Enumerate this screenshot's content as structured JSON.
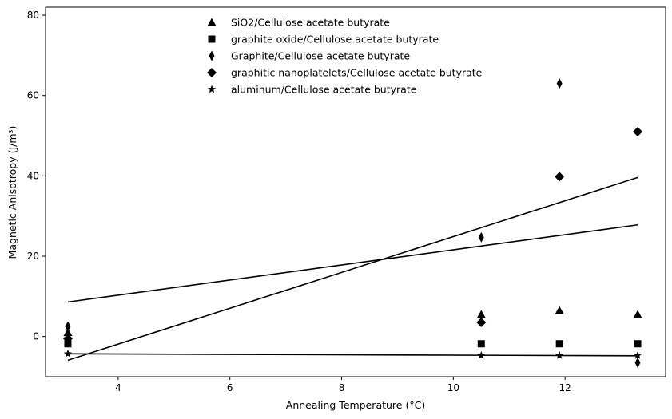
{
  "chart_data": {
    "type": "scatter",
    "title": "",
    "xlabel": "Annealing Temperature (°C)",
    "ylabel": "Magnetic Anisotropy (J/m³)",
    "xlim": [
      2.7,
      13.8
    ],
    "ylim": [
      -10,
      82
    ],
    "xticks": [
      4,
      6,
      8,
      10,
      12
    ],
    "yticks": [
      0,
      20,
      40,
      60,
      80
    ],
    "grid": false,
    "legend_position": "top-center",
    "color": "#000000",
    "series": [
      {
        "name": "SiO2/Cellulose acetate butyrate",
        "marker": "triangle",
        "x": [
          3.1,
          10.5,
          11.9,
          13.3
        ],
        "y": [
          1.0,
          5.5,
          6.5,
          5.5
        ]
      },
      {
        "name": "graphite oxide/Cellulose acetate butyrate",
        "marker": "square",
        "x": [
          3.1,
          10.5,
          11.9,
          13.3
        ],
        "y": [
          -1.8,
          -1.8,
          -1.8,
          -1.8
        ]
      },
      {
        "name": "Graphite/Cellulose acetate butyrate",
        "marker": "thin-diamond",
        "x": [
          3.1,
          10.5,
          11.9,
          13.3
        ],
        "y": [
          2.5,
          24.7,
          63.0,
          -6.5
        ]
      },
      {
        "name": "graphitic nanoplatelets/Cellulose acetate butyrate",
        "marker": "diamond",
        "x": [
          3.1,
          10.5,
          11.9,
          13.3
        ],
        "y": [
          -0.5,
          3.5,
          39.8,
          51.0
        ]
      },
      {
        "name": "aluminum/Cellulose acetate butyrate",
        "marker": "star",
        "x": [
          3.1,
          10.5,
          11.9,
          13.3
        ],
        "y": [
          -4.3,
          -4.7,
          -4.7,
          -4.7
        ]
      }
    ],
    "lines": [
      {
        "x": [
          3.1,
          13.3
        ],
        "y": [
          -5.9,
          39.6
        ]
      },
      {
        "x": [
          3.1,
          13.3
        ],
        "y": [
          8.6,
          27.8
        ]
      },
      {
        "x": [
          3.1,
          13.3
        ],
        "y": [
          -4.3,
          -4.8
        ]
      }
    ]
  }
}
